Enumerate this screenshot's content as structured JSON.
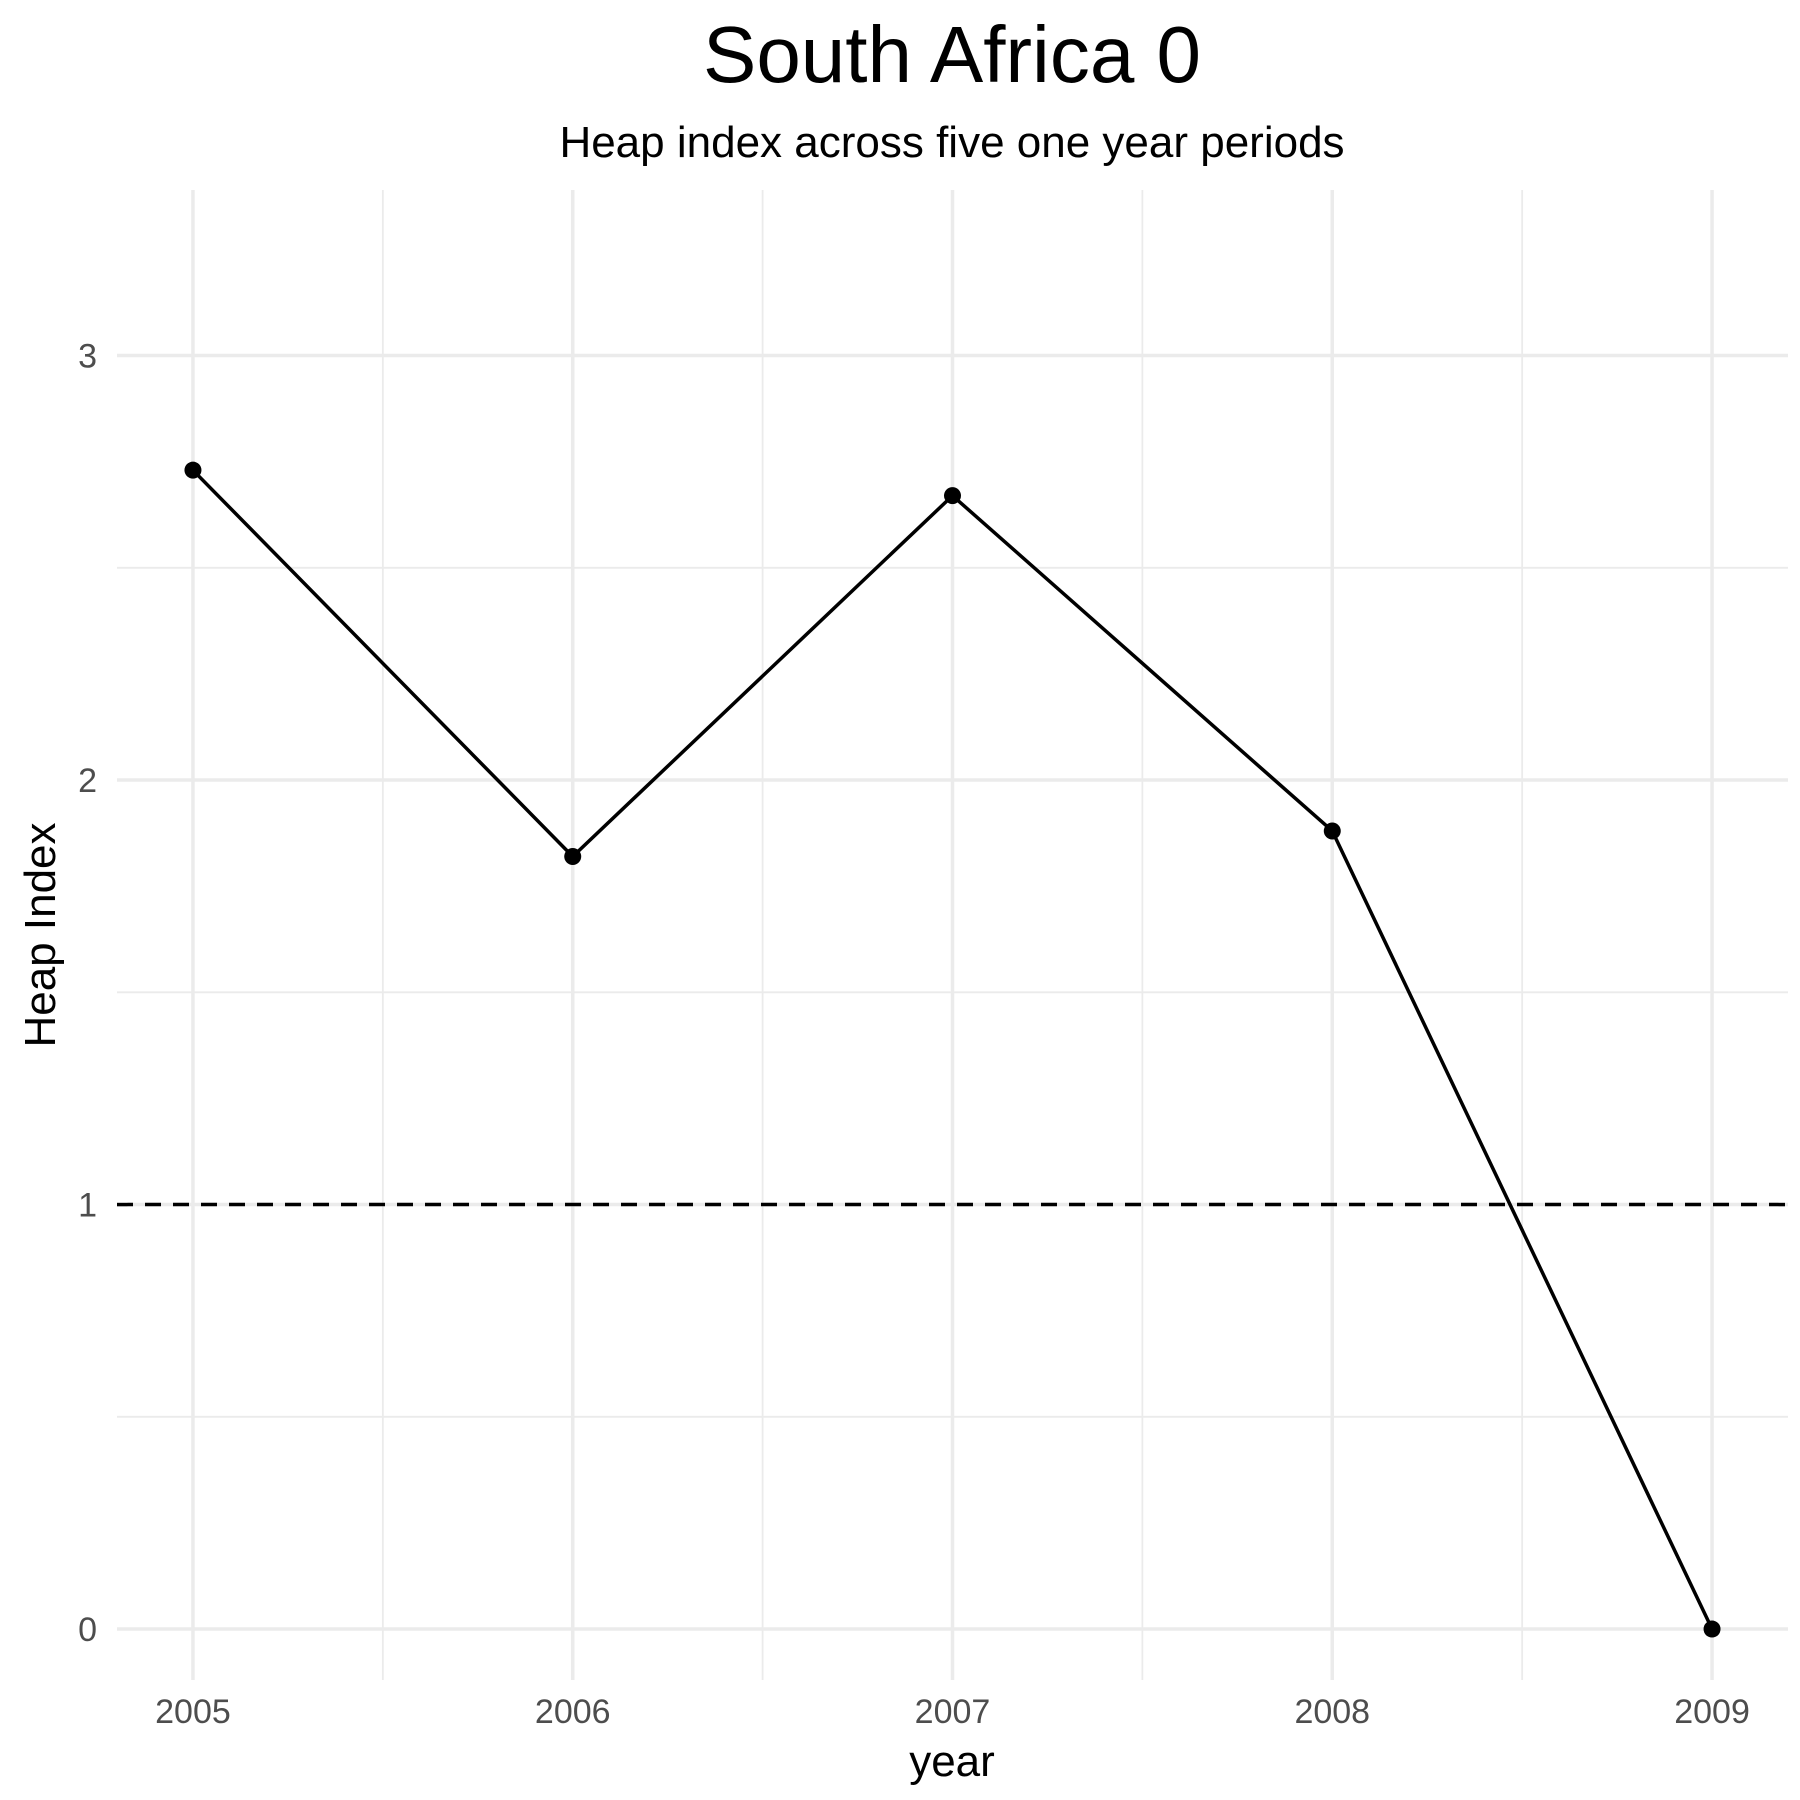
{
  "chart_data": {
    "type": "line",
    "title": "South Africa 0",
    "subtitle": "Heap index across five one year periods",
    "xlabel": "year",
    "ylabel": "Heap Index",
    "x": [
      2005,
      2006,
      2007,
      2008,
      2009
    ],
    "series": [
      {
        "values": [
          2.73,
          1.82,
          2.67,
          1.88,
          0.0
        ]
      }
    ],
    "reference_line": {
      "y": 1,
      "style": "dashed"
    },
    "xlim": [
      2004.8,
      2009.2
    ],
    "ylim": [
      -0.12,
      3.39
    ],
    "x_ticks": [
      "2005",
      "2006",
      "2007",
      "2008",
      "2009"
    ],
    "y_ticks": [
      "0",
      "1",
      "2",
      "3"
    ],
    "grid": true,
    "legend": "none",
    "colors": {
      "line": "#000000",
      "grid": "#ebebeb",
      "tick_text": "#4d4d4d"
    }
  }
}
